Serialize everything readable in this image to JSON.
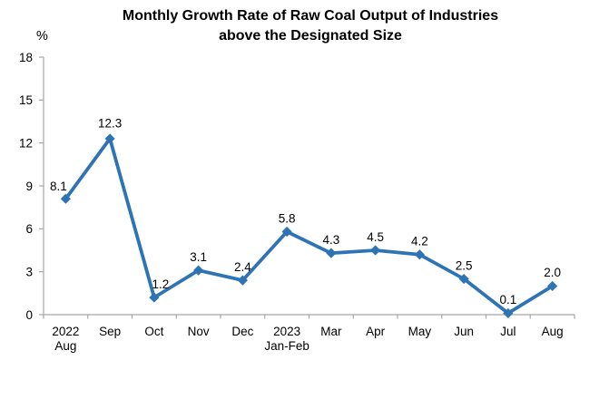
{
  "chart_data": {
    "type": "line",
    "title_line1": "Monthly Growth Rate of Raw Coal Output of Industries",
    "title_line2": "above the Designated Size",
    "title": "Monthly Growth Rate of Raw Coal Output of Industries above the Designated Size",
    "unit_label": "%",
    "categories": [
      {
        "line1": "2022",
        "line2": "Aug"
      },
      {
        "line1": "Sep"
      },
      {
        "line1": "Oct"
      },
      {
        "line1": "Nov"
      },
      {
        "line1": "Dec"
      },
      {
        "line1": "2023",
        "line2": "Jan-Feb"
      },
      {
        "line1": "Mar"
      },
      {
        "line1": "Apr"
      },
      {
        "line1": "May"
      },
      {
        "line1": "Jun"
      },
      {
        "line1": "Jul"
      },
      {
        "line1": "Aug"
      }
    ],
    "values": [
      8.1,
      12.3,
      1.2,
      3.1,
      2.4,
      5.8,
      4.3,
      4.5,
      4.2,
      2.5,
      0.1,
      2.0
    ],
    "data_labels": [
      "8.1",
      "12.3",
      "1.2",
      "3.1",
      "2.4",
      "5.8",
      "4.3",
      "4.5",
      "4.2",
      "2.5",
      "0.1",
      "2.0"
    ],
    "yticks": [
      0,
      3,
      6,
      9,
      12,
      15,
      18
    ],
    "ylim": [
      0,
      18
    ],
    "grid": false,
    "legend": "none",
    "marker": "diamond",
    "colors": {
      "line": "#2E74B5",
      "marker": "#2E74B5",
      "axis": "#A6A6A6",
      "text": "#000000",
      "background": "#FFFFFF"
    },
    "label_offsets": {
      "0": [
        -8,
        -14
      ],
      "2": [
        7,
        -15
      ],
      "1": [
        0,
        -17
      ]
    },
    "default_label_offset": [
      0,
      -15
    ]
  }
}
